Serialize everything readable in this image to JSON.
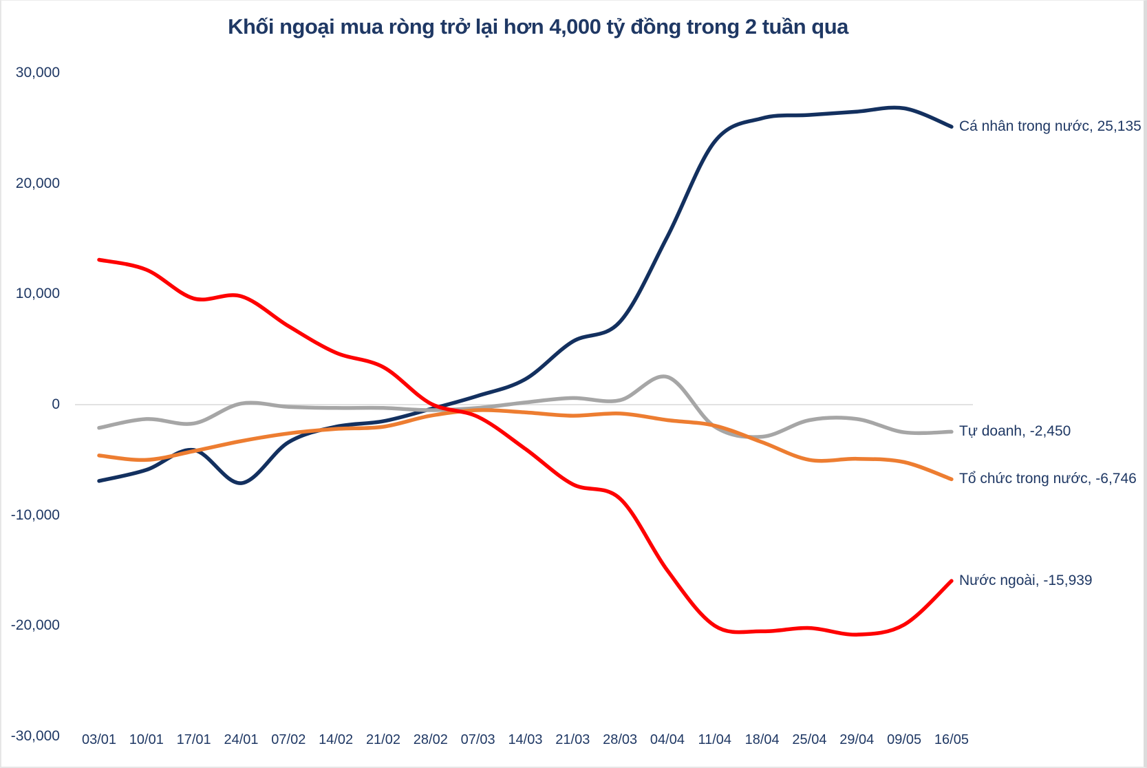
{
  "title": "Khối ngoại mua ròng trở lại hơn 4,000 tỷ đồng trong 2 tuần qua",
  "colors": {
    "title_text": "#1f3864",
    "axis_text": "#1f3864",
    "gridline": "#d9d9d9",
    "series_ca_nhan": "#13305f",
    "series_tu_doanh": "#a6a6a6",
    "series_to_chuc": "#ed7d31",
    "series_nuoc_ngoai": "#fe0000"
  },
  "chart_data": {
    "type": "line",
    "title": "Khối ngoại mua ròng trở lại hơn 4,000 tỷ đồng trong 2 tuần qua",
    "xlabel": "",
    "ylabel": "",
    "ylim": [
      -30000,
      30000
    ],
    "grid": "zero-line-only",
    "legend_position": "labels-at-line-ends",
    "line_style": "smooth",
    "categories": [
      "03/01",
      "10/01",
      "17/01",
      "24/01",
      "07/02",
      "14/02",
      "21/02",
      "28/02",
      "07/03",
      "14/03",
      "21/03",
      "28/03",
      "04/04",
      "11/04",
      "18/04",
      "25/04",
      "29/04",
      "09/05",
      "16/05"
    ],
    "yticks": {
      "values": [
        30000,
        20000,
        10000,
        0,
        -10000,
        -20000,
        -30000
      ],
      "labels": [
        "30,000",
        "20,000",
        "10,000",
        "0",
        "-10,000",
        "-20,000",
        "-30,000"
      ]
    },
    "series": [
      {
        "name": "Cá nhân trong nước",
        "label": "Cá nhân trong nước, 25,135",
        "end_value": 25135,
        "color": "#13305f",
        "values": [
          -6900,
          -5900,
          -4100,
          -7100,
          -3400,
          -2000,
          -1500,
          -400,
          800,
          2300,
          5700,
          7500,
          15200,
          23800,
          25900,
          26200,
          26500,
          26800,
          25135
        ]
      },
      {
        "name": "Tự doanh",
        "label": "Tự doanh, -2,450",
        "end_value": -2450,
        "color": "#a6a6a6",
        "values": [
          -2100,
          -1300,
          -1700,
          100,
          -200,
          -300,
          -300,
          -500,
          -300,
          200,
          600,
          400,
          2500,
          -2000,
          -2900,
          -1400,
          -1300,
          -2500,
          -2450
        ]
      },
      {
        "name": "Tổ chức trong nước",
        "label": "Tổ chức trong nước, -6,746",
        "end_value": -6746,
        "color": "#ed7d31",
        "values": [
          -4600,
          -5000,
          -4200,
          -3300,
          -2600,
          -2200,
          -2000,
          -1000,
          -500,
          -700,
          -1000,
          -800,
          -1400,
          -1900,
          -3400,
          -5000,
          -4900,
          -5200,
          -6746
        ]
      },
      {
        "name": "Nước ngoài",
        "label": "Nước ngoài, -15,939",
        "end_value": -15939,
        "color": "#fe0000",
        "values": [
          13100,
          12200,
          9600,
          9800,
          7100,
          4700,
          3400,
          100,
          -1100,
          -4000,
          -7200,
          -8500,
          -15000,
          -20000,
          -20500,
          -20200,
          -20800,
          -19900,
          -15939
        ]
      }
    ]
  }
}
